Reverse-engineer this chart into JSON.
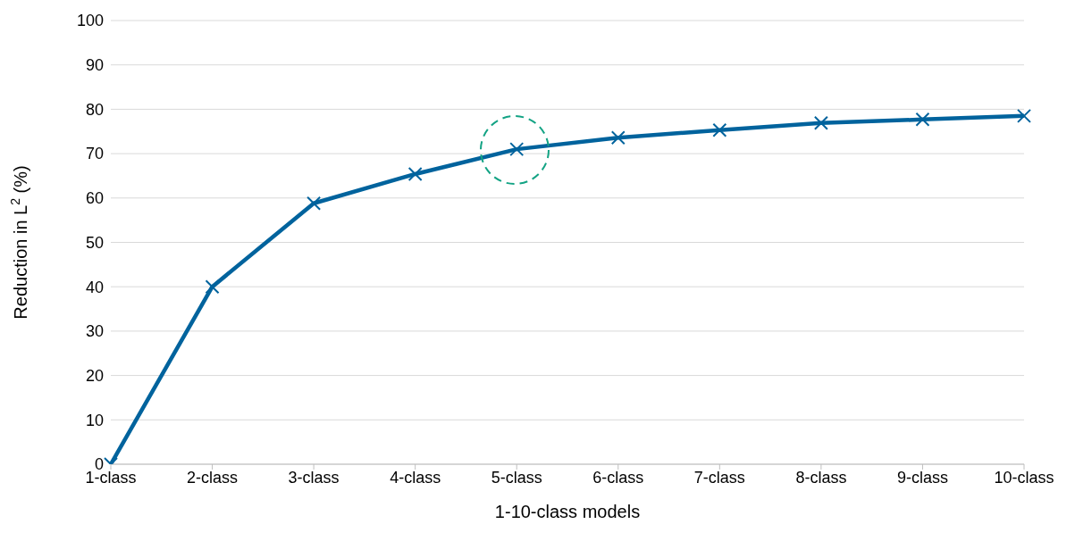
{
  "chart_data": {
    "type": "line",
    "ylabel": "Reduction in L$^{2}$  (%)",
    "xlabel": "1-10-class models",
    "categories": [
      "1-class",
      "2-class",
      "3-class",
      "4-class",
      "5-class",
      "6-class",
      "7-class",
      "8-class",
      "9-class",
      "10-class"
    ],
    "series": [
      {
        "color": "#00639d",
        "values": [
          0,
          40,
          58.8,
          65.4,
          71.0,
          73.6,
          75.3,
          76.9,
          77.7,
          78.5
        ]
      }
    ],
    "ylim": [
      0,
      100
    ],
    "yticks": [
      0,
      10,
      20,
      30,
      40,
      50,
      60,
      70,
      80,
      90,
      100
    ],
    "grid": "y",
    "marker": "cross",
    "line_style": "solid"
  }
}
